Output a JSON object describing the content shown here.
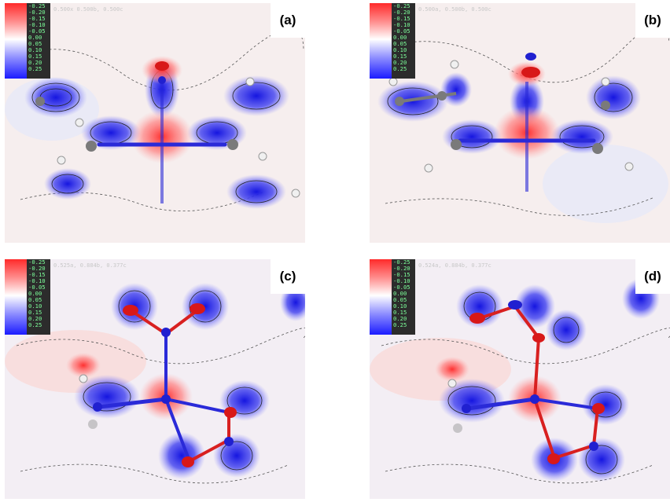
{
  "scale_ticks": [
    "-0.25",
    "-0.20",
    "-0.15",
    "-0.10",
    "-0.05",
    "0.00",
    "0.05",
    "0.10",
    "0.15",
    "0.20",
    "0.25"
  ],
  "colors": {
    "negative": "#ff2a2a",
    "positive": "#1b1bff",
    "bond_red": "#e01818",
    "bond_blue": "#2020d0",
    "carbon": "#7a7a7a",
    "hydrogen": "#f0f0f0"
  },
  "panels": [
    {
      "label": "(a)",
      "header": "0.500x 0.500b, 0.500c"
    },
    {
      "label": "(b)",
      "header": "0.500a, 0.500b, 0.500c"
    },
    {
      "label": "(c)",
      "header": "0.525a, 0.884b, 0.377c"
    },
    {
      "label": "(d)",
      "header": "0.524a, 0.884b, 0.377c"
    }
  ]
}
